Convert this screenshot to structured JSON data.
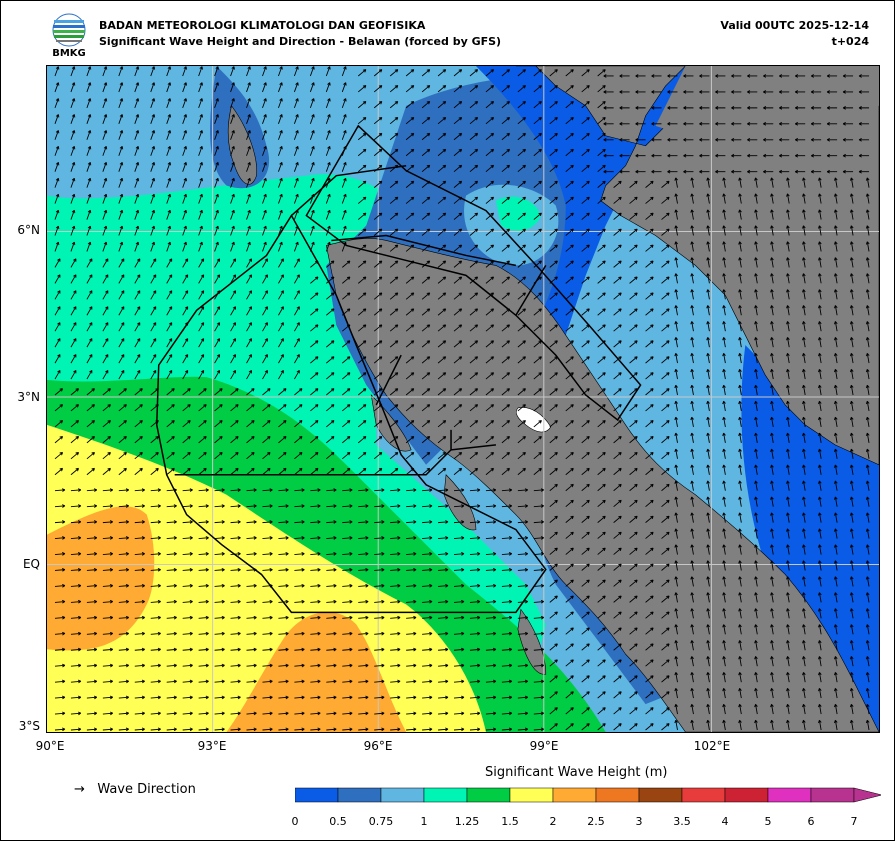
{
  "header": {
    "agency": "BADAN METEOROLOGI KLIMATOLOGI DAN GEOFISIKA",
    "subtitle": "Significant Wave Height and Direction - Belawan (forced by GFS)",
    "valid": "Valid 00UTC 2025-12-14",
    "lead": "t+024",
    "logo_text": "BMKG"
  },
  "axes": {
    "lat_labels": [
      "6°N",
      "3°N",
      "EQ",
      "3°S"
    ],
    "lon_labels": [
      "90°E",
      "93°E",
      "96°E",
      "99°E",
      "102°E"
    ]
  },
  "legend": {
    "direction_label": "Wave Direction",
    "direction_symbol": "→"
  },
  "colorbar": {
    "title": "Significant Wave Height (m)",
    "ticks": [
      "0",
      "0.5",
      "0.75",
      "1",
      "1.25",
      "1.5",
      "2",
      "2.5",
      "3",
      "3.5",
      "4",
      "5",
      "6",
      "7"
    ],
    "colors": [
      "#0a5ce6",
      "#2f6fbf",
      "#5fb6e0",
      "#00f5b5",
      "#00cc44",
      "#ffff55",
      "#ffaa33",
      "#ee7722",
      "#994411",
      "#e83c3c",
      "#cc2233",
      "#e030c0",
      "#b8338f"
    ]
  },
  "colors": {
    "land": "#808080",
    "grid": "#c8c8c8",
    "boundary": "#000000"
  }
}
